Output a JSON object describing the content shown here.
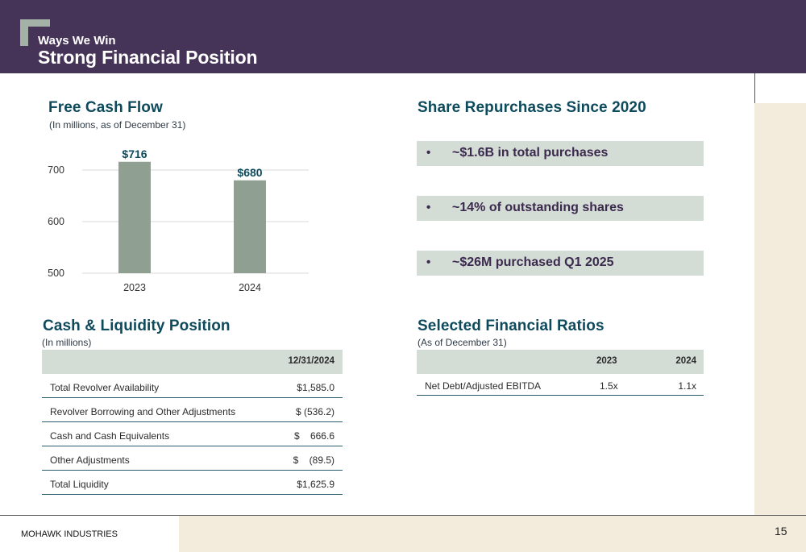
{
  "header": {
    "eyebrow": "Ways We Win",
    "title": "Strong Financial Position"
  },
  "free_cash_flow": {
    "title": "Free Cash Flow",
    "subtitle": "(In millions, as of December 31)"
  },
  "chart_data": {
    "type": "bar",
    "title": "Free Cash Flow",
    "categories": [
      "2023",
      "2024"
    ],
    "values": [
      716,
      680
    ],
    "data_labels": [
      "$716",
      "$680"
    ],
    "yticks": [
      "500",
      "600",
      "700"
    ],
    "ylim": [
      500,
      720
    ],
    "grid": true,
    "bar_color": "#8f9f91",
    "label_color": "#0d4a5c"
  },
  "share_repurchases": {
    "title": "Share Repurchases Since 2020",
    "bullet": "•",
    "items": [
      "~$1.6B in total purchases",
      "~14% of outstanding shares",
      "~$26M purchased Q1 2025"
    ]
  },
  "cash_liquidity": {
    "title": "Cash & Liquidity Position",
    "subtitle": "(In millions)",
    "column": "12/31/2024",
    "rows": [
      {
        "label": "Total Revolver Availability",
        "value": "$1,585.0"
      },
      {
        "label": "Revolver Borrowing and Other Adjustments",
        "value": "$ (536.2)"
      },
      {
        "label": "Cash and Cash Equivalents",
        "value": "$    666.6"
      },
      {
        "label": "Other Adjustments",
        "value": "$    (89.5)"
      },
      {
        "label": "Total Liquidity",
        "value": "$1,625.9"
      }
    ]
  },
  "ratios": {
    "title": "Selected Financial Ratios",
    "subtitle": "(As of December 31)",
    "columns": [
      "2023",
      "2024"
    ],
    "rows": [
      {
        "label": "Net Debt/Adjusted EBITDA",
        "values": [
          "1.5x",
          "1.1x"
        ]
      }
    ]
  },
  "footer": {
    "brand": "MOHAWK INDUSTRIES",
    "page": "15"
  },
  "colors": {
    "header_bg": "#463458",
    "teal_title": "#0d4a5c",
    "tan": "#f3ecdc",
    "sage_fill": "#d4dcd6"
  }
}
